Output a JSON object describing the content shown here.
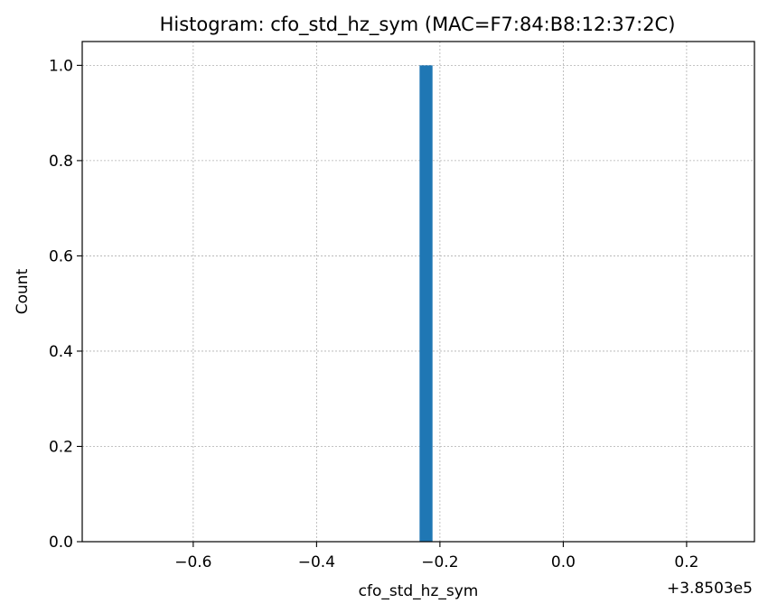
{
  "chart_data": {
    "type": "bar",
    "title": "Histogram: cfo_std_hz_sym (MAC=F7:84:B8:12:37:2C)",
    "xlabel": "cfo_std_hz_sym",
    "ylabel": "Count",
    "offset_label": "+3.8503e5",
    "xlim": [
      -0.78,
      0.31
    ],
    "ylim": [
      0,
      1.05
    ],
    "xticks": [
      -0.6,
      -0.4,
      -0.2,
      0.0,
      0.2
    ],
    "xtick_labels": [
      "−0.6",
      "−0.4",
      "−0.2",
      "0.0",
      "0.2"
    ],
    "yticks": [
      0.0,
      0.2,
      0.4,
      0.6,
      0.8,
      1.0
    ],
    "ytick_labels": [
      "0.0",
      "0.2",
      "0.4",
      "0.6",
      "0.8",
      "1.0"
    ],
    "grid": true,
    "bar_color": "#1f77b4",
    "bins": [
      {
        "x_start": -0.233,
        "x_end": -0.212,
        "count": 1
      }
    ]
  }
}
